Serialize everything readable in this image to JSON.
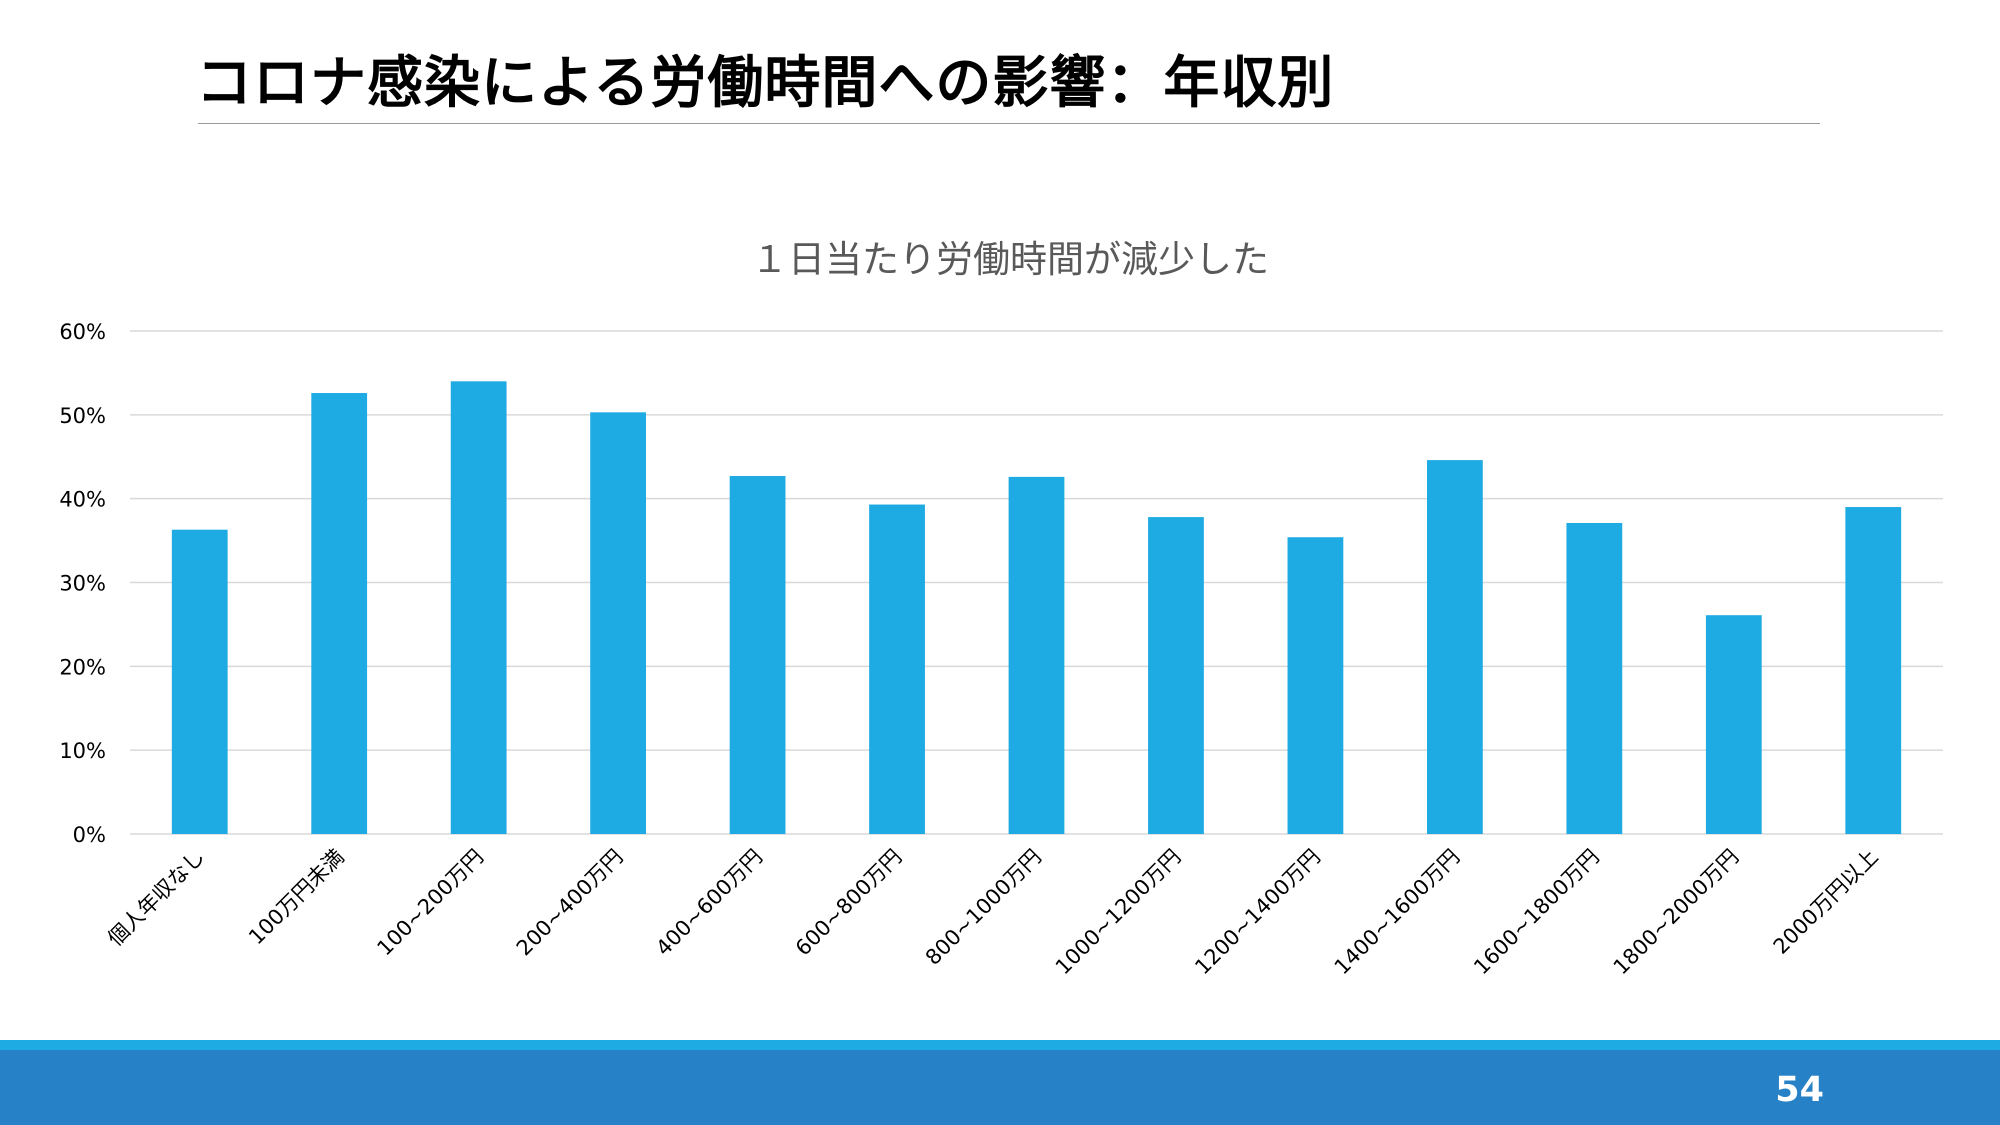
{
  "slide": {
    "title": "コロナ感染による労働時間への影響：年収別",
    "page_number": "54"
  },
  "colors": {
    "bar": "#1eaae2",
    "gridline": "#d9d9d9",
    "footer_stripe": "#1eaae2",
    "footer_bar": "#2681c6"
  },
  "chart_data": {
    "type": "bar",
    "title": "１日当たり労働時間が減少した",
    "xlabel": "",
    "ylabel": "",
    "ylim": [
      0,
      60
    ],
    "yticks": [
      "0%",
      "10%",
      "20%",
      "30%",
      "40%",
      "50%",
      "60%"
    ],
    "grid": true,
    "categories": [
      "個人年収なし",
      "100万円未満",
      "100~200万円",
      "200~400万円",
      "400~600万円",
      "600~800万円",
      "800~1000万円",
      "1000~1200万円",
      "1200~1400万円",
      "1400~1600万円",
      "1600~1800万円",
      "1800~2000万円",
      "2000万円以上"
    ],
    "values": [
      36.3,
      52.6,
      54.0,
      50.3,
      42.7,
      39.3,
      42.6,
      37.8,
      35.4,
      44.6,
      37.1,
      26.1,
      39.0
    ]
  }
}
